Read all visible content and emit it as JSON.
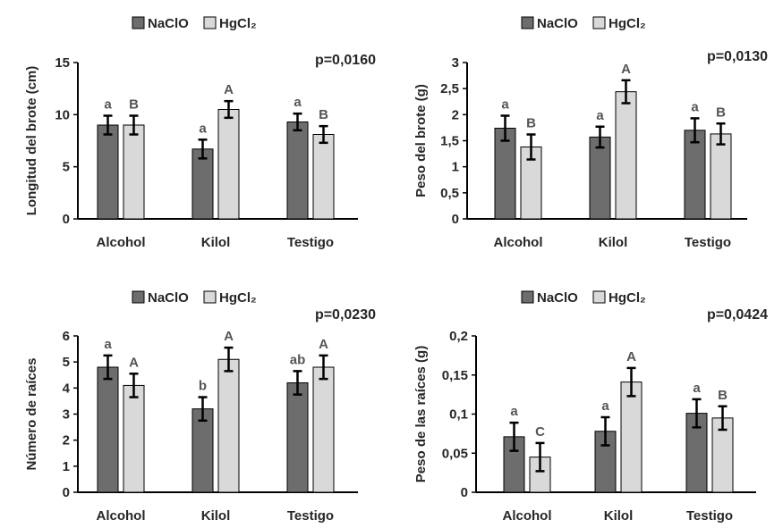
{
  "legend": {
    "series": [
      "NaClO",
      "HgCl₂"
    ]
  },
  "colors": {
    "NaClO": "#6d6d6d",
    "HgCl2": "#d9d9d9",
    "bar_stroke": "#000000",
    "text": "#262626",
    "sig": "#555555"
  },
  "chart_data": [
    {
      "type": "bar",
      "ylabel": "Longitud del brote (cm)",
      "pvalue": "p=0,0160",
      "categories": [
        "Alcohol",
        "Kilol",
        "Testigo"
      ],
      "ylim": [
        0,
        15
      ],
      "yticks": [
        0,
        5,
        10,
        15
      ],
      "ytick_labels": [
        "0",
        "5",
        "10",
        "15"
      ],
      "legend_position": "top",
      "series": [
        {
          "name": "NaClO",
          "values": [
            9.0,
            6.7,
            9.3
          ],
          "errors": [
            0.9,
            0.9,
            0.8
          ],
          "letters": [
            "a",
            "a",
            "a"
          ]
        },
        {
          "name": "HgCl₂",
          "values": [
            9.0,
            10.5,
            8.1
          ],
          "errors": [
            0.9,
            0.8,
            0.8
          ],
          "letters": [
            "B",
            "A",
            "B"
          ]
        }
      ]
    },
    {
      "type": "bar",
      "ylabel": "Peso del brote (g)",
      "pvalue": "p=0,0130",
      "categories": [
        "Alcohol",
        "Kilol",
        "Testigo"
      ],
      "ylim": [
        0,
        3
      ],
      "yticks": [
        0,
        0.5,
        1,
        1.5,
        2,
        2.5,
        3
      ],
      "ytick_labels": [
        "0",
        "0,5",
        "1",
        "1,5",
        "2",
        "2,5",
        "3"
      ],
      "legend_position": "top",
      "series": [
        {
          "name": "NaClO",
          "values": [
            1.74,
            1.57,
            1.7
          ],
          "errors": [
            0.24,
            0.2,
            0.23
          ],
          "letters": [
            "a",
            "a",
            "a"
          ]
        },
        {
          "name": "HgCl₂",
          "values": [
            1.38,
            2.44,
            1.63
          ],
          "errors": [
            0.24,
            0.22,
            0.2
          ],
          "letters": [
            "B",
            "A",
            "B"
          ]
        }
      ]
    },
    {
      "type": "bar",
      "ylabel": "Número de raíces",
      "pvalue": "p=0,0230",
      "categories": [
        "Alcohol",
        "Kilol",
        "Testigo"
      ],
      "ylim": [
        0,
        6
      ],
      "yticks": [
        0,
        1,
        2,
        3,
        4,
        5,
        6
      ],
      "ytick_labels": [
        "0",
        "1",
        "2",
        "3",
        "4",
        "5",
        "6"
      ],
      "legend_position": "top",
      "series": [
        {
          "name": "NaClO",
          "values": [
            4.8,
            3.2,
            4.2
          ],
          "errors": [
            0.45,
            0.45,
            0.45
          ],
          "letters": [
            "a",
            "b",
            "ab"
          ]
        },
        {
          "name": "HgCl₂",
          "values": [
            4.1,
            5.1,
            4.8
          ],
          "errors": [
            0.45,
            0.45,
            0.45
          ],
          "letters": [
            "A",
            "A",
            "A"
          ]
        }
      ]
    },
    {
      "type": "bar",
      "ylabel": "Peso de las raíces (g)",
      "pvalue": "p=0,0424",
      "categories": [
        "Alcohol",
        "Kilol",
        "Testigo"
      ],
      "ylim": [
        0,
        0.2
      ],
      "yticks": [
        0,
        0.05,
        0.1,
        0.15,
        0.2
      ],
      "ytick_labels": [
        "0",
        "0,05",
        "0,1",
        "0,15",
        "0,2"
      ],
      "legend_position": "top",
      "series": [
        {
          "name": "NaClO",
          "values": [
            0.071,
            0.078,
            0.101
          ],
          "errors": [
            0.018,
            0.018,
            0.018
          ],
          "letters": [
            "a",
            "a",
            "a"
          ]
        },
        {
          "name": "HgCl₂",
          "values": [
            0.045,
            0.141,
            0.095
          ],
          "errors": [
            0.018,
            0.018,
            0.015
          ],
          "letters": [
            "C",
            "A",
            "B"
          ]
        }
      ]
    }
  ]
}
